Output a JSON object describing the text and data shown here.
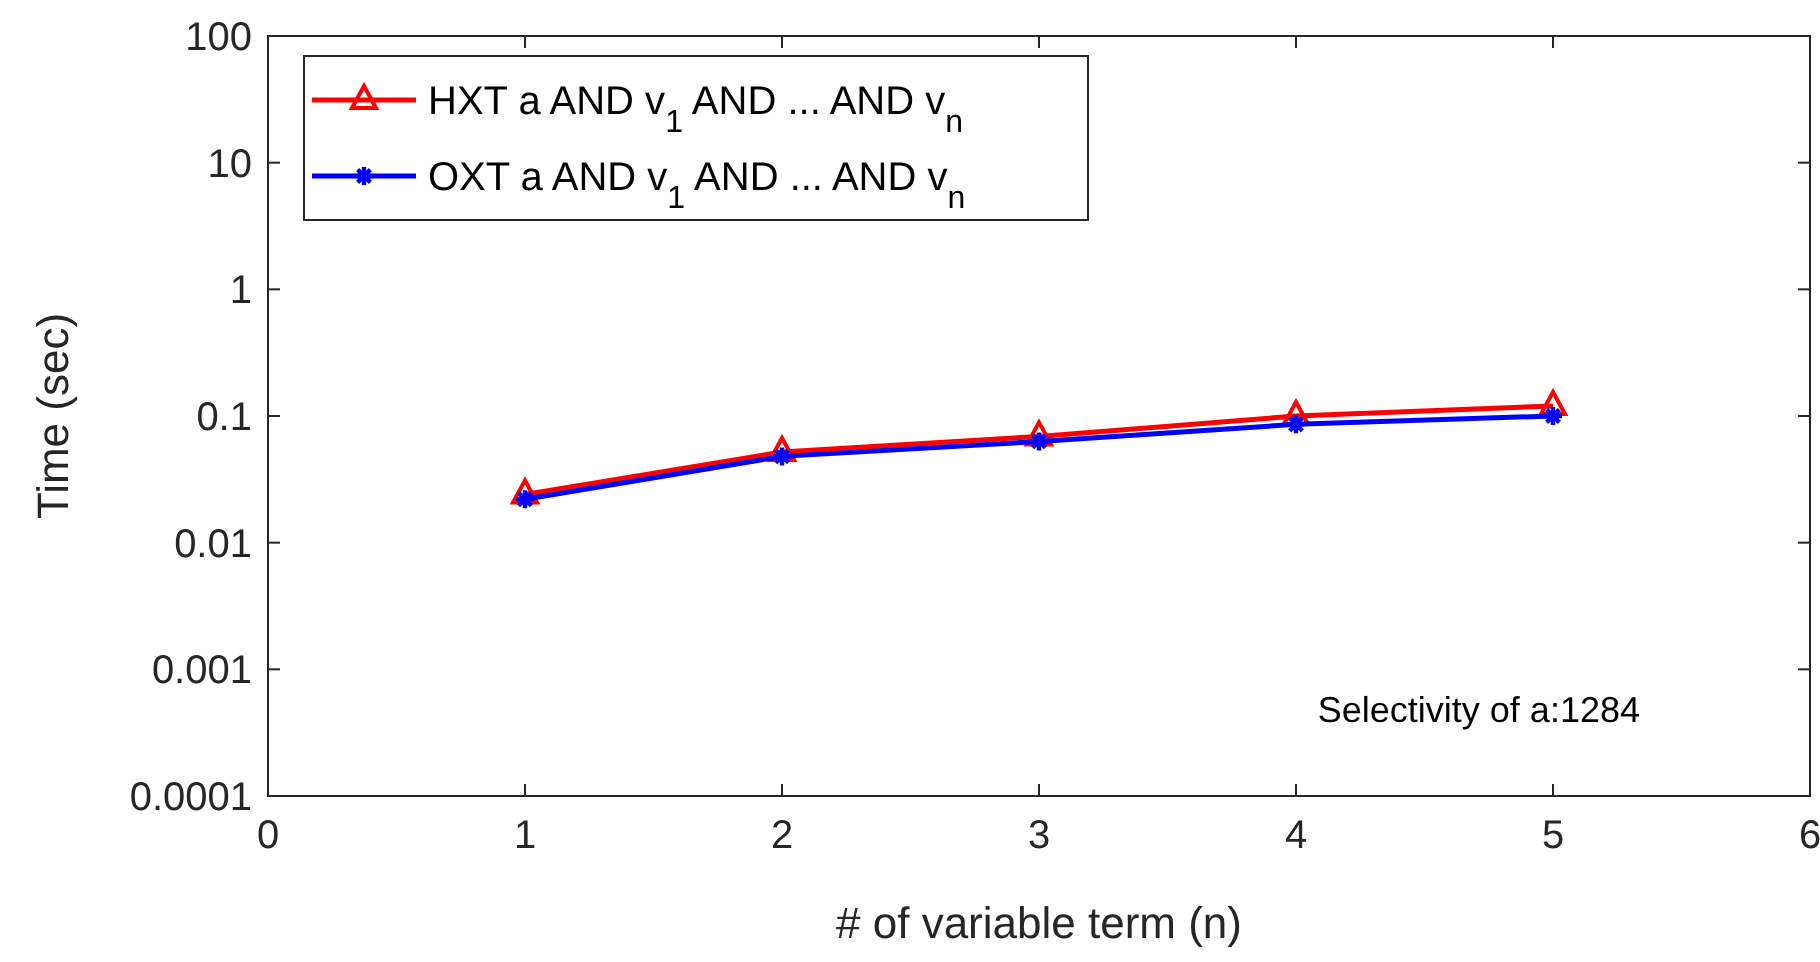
{
  "chart_data": {
    "type": "line",
    "xlabel": "# of variable term (n)",
    "ylabel": "Time (sec)",
    "log": "y",
    "x": [
      1,
      2,
      3,
      4,
      5
    ],
    "xlim": [
      0,
      6
    ],
    "xticks": [
      0,
      1,
      2,
      3,
      4,
      5,
      6
    ],
    "ylim": [
      0.0001,
      100
    ],
    "yticks": [
      0.0001,
      0.001,
      0.01,
      0.1,
      1,
      10,
      100
    ],
    "grid": false,
    "legend": "top left",
    "line_style": "solid",
    "series": [
      {
        "name": "HXT a AND v$_{1}$ AND ... AND v$_{n}$",
        "color": "#ff0000",
        "marker": "triangle",
        "values": [
          0.024,
          0.052,
          0.069,
          0.1,
          0.12
        ]
      },
      {
        "name": "OXT a AND v$_{1}$ AND ... AND v$_{n}$",
        "color": "#0000ff",
        "marker": "cross",
        "values": [
          0.022,
          0.048,
          0.063,
          0.086,
          0.1
        ]
      }
    ],
    "annotations": [
      "Selectivity of a:1284"
    ]
  }
}
